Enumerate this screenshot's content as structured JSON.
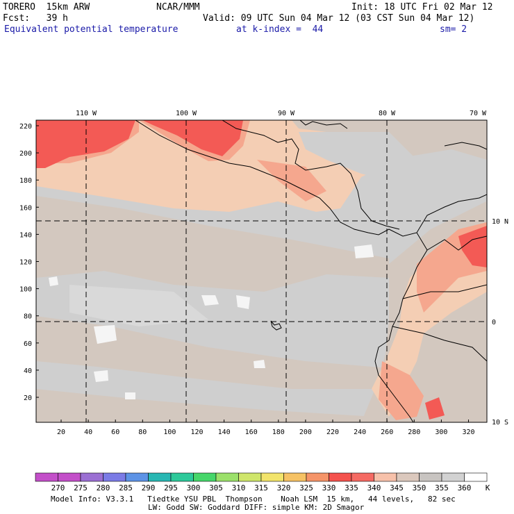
{
  "header": {
    "model": "TORERO  15km ARW",
    "org": "NCAR/MMM",
    "init": "Init: 18 UTC Fri 02 Mar 12",
    "fcst": "Fcst:   39 h",
    "valid": "Valid: 09 UTC Sun 04 Mar 12 (03 CST Sun 04 Mar 12)",
    "field": "Equivalent potential temperature",
    "level": "at k-index =  44",
    "smooth": "sm= 2"
  },
  "axes": {
    "top_longitudes": [
      "110 W",
      "100 W",
      "90 W",
      "80 W",
      "70 W"
    ],
    "right_latitudes": [
      "10 N",
      "0",
      "10 S"
    ],
    "left_ticks": [
      "220",
      "200",
      "180",
      "160",
      "140",
      "120",
      "100",
      "80",
      "60",
      "40",
      "20"
    ],
    "bottom_ticks": [
      "20",
      "40",
      "60",
      "80",
      "100",
      "120",
      "140",
      "160",
      "180",
      "200",
      "220",
      "240",
      "260",
      "280",
      "300",
      "320"
    ]
  },
  "colorbar": {
    "unit": "K",
    "labels": [
      "270",
      "275",
      "280",
      "285",
      "290",
      "295",
      "300",
      "305",
      "310",
      "315",
      "320",
      "325",
      "330",
      "335",
      "340",
      "345",
      "350",
      "355",
      "360"
    ],
    "colors": [
      "#c34fc9",
      "#9b6fd3",
      "#7b7be6",
      "#5d93e6",
      "#28b7b3",
      "#2dc99a",
      "#46d66a",
      "#9be06a",
      "#cfe66b",
      "#f2e46b",
      "#f6c264",
      "#f59468",
      "#f4524d",
      "#f56a63",
      "#f7c1aa",
      "#dbc8bd",
      "#c8c4c1",
      "#d2d2d2",
      "#ffffff"
    ]
  },
  "map_colors": {
    "ocean_gray": "#cfcfcf",
    "light_gray": "#d9d9d9",
    "tan": "#d3c8bf",
    "peach": "#f4ceb4",
    "salmon": "#f5a78e",
    "red": "#f35a55",
    "white": "#f5f5f5"
  },
  "footer": {
    "line1": "Model Info: V3.3.1   Tiedtke YSU PBL  Thompson    Noah LSM  15 km,   44 levels,   82 sec",
    "line2": "LW: Godd SW: Goddard DIFF: simple KM: 2D Smagor"
  }
}
